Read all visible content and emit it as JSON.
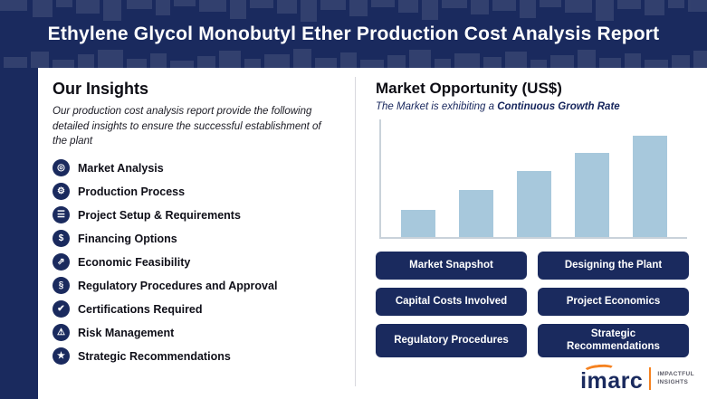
{
  "header": {
    "title": "Ethylene Glycol Monobutyl Ether Production Cost Analysis Report"
  },
  "insights": {
    "heading": "Our Insights",
    "description": "Our production cost analysis report provide the following detailed insights to ensure the successful establishment of the plant",
    "items": [
      {
        "label": "Market Analysis",
        "icon": "◎"
      },
      {
        "label": "Production Process",
        "icon": "⚙"
      },
      {
        "label": "Project Setup & Requirements",
        "icon": "☰"
      },
      {
        "label": "Financing Options",
        "icon": "$"
      },
      {
        "label": "Economic Feasibility",
        "icon": "⇗"
      },
      {
        "label": "Regulatory Procedures and Approval",
        "icon": "§"
      },
      {
        "label": "Certifications Required",
        "icon": "✔"
      },
      {
        "label": "Risk Management",
        "icon": "⚠"
      },
      {
        "label": "Strategic Recommendations",
        "icon": "★"
      }
    ]
  },
  "market": {
    "heading": "Market Opportunity (US$)",
    "subtitle_prefix": "The Market is exhibiting a ",
    "subtitle_emphasis": "Continuous Growth Rate"
  },
  "chart_data": {
    "type": "bar",
    "title": "Market Opportunity (US$)",
    "categories": [
      "",
      "",
      "",
      "",
      ""
    ],
    "values": [
      30,
      52,
      73,
      93,
      112
    ],
    "xlabel": "",
    "ylabel": "",
    "ylim": [
      0,
      130
    ],
    "grid": false,
    "legend": "none",
    "bar_color": "#a7c8dc",
    "note_visible_labels": "no axis tick labels are shown in the image; values are relative bar heights"
  },
  "buttons": [
    "Market Snapshot",
    "Designing the Plant",
    "Capital Costs Involved",
    "Project Economics",
    "Regulatory Procedures",
    "Strategic Recommendations"
  ],
  "logo": {
    "name": "imarc",
    "tagline_line1": "IMPACTFUL",
    "tagline_line2": "INSIGHTS"
  },
  "colors": {
    "navy": "#1a2a5e",
    "bar_blue": "#a7c8dc",
    "orange": "#f58220",
    "white": "#ffffff"
  }
}
